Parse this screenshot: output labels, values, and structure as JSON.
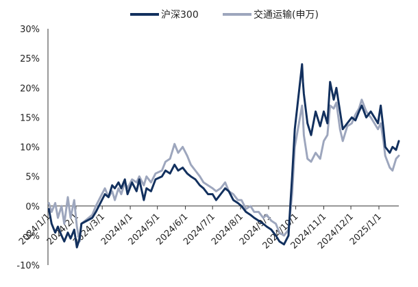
{
  "chart_data": {
    "type": "line",
    "title": "",
    "xlabel": "",
    "ylabel": "",
    "ylim": [
      -10,
      30
    ],
    "y_ticks": [
      "30%",
      "25%",
      "20%",
      "15%",
      "10%",
      "5%",
      "0%",
      "-5%",
      "-10%"
    ],
    "y_tick_values": [
      30,
      25,
      20,
      15,
      10,
      5,
      0,
      -5,
      -10
    ],
    "x_ticks": [
      "2024/1/1",
      "2024/2/1",
      "2024/3/1",
      "2024/4/1",
      "2024/5/1",
      "2024/6/1",
      "2024/7/1",
      "2024/8/1",
      "2024/9/1",
      "2024/10/1",
      "2024/11/1",
      "2024/12/1",
      "2025/1/1"
    ],
    "x_range": [
      "2024-01-01",
      "2025-01-23"
    ],
    "grid": false,
    "legend_position": "top-center",
    "series": [
      {
        "name": "沪深300",
        "color": "#12305e",
        "points": [
          [
            "2024-01-02",
            -0.5
          ],
          [
            "2024-01-05",
            -3.0
          ],
          [
            "2024-01-09",
            -4.5
          ],
          [
            "2024-01-12",
            -3.5
          ],
          [
            "2024-01-16",
            -5.0
          ],
          [
            "2024-01-19",
            -6.0
          ],
          [
            "2024-01-23",
            -4.5
          ],
          [
            "2024-01-26",
            -5.5
          ],
          [
            "2024-01-30",
            -4.0
          ],
          [
            "2024-02-02",
            -7.0
          ],
          [
            "2024-02-05",
            -5.5
          ],
          [
            "2024-02-07",
            -3.0
          ],
          [
            "2024-02-19",
            -2.0
          ],
          [
            "2024-02-23",
            -1.0
          ],
          [
            "2024-02-28",
            0.5
          ],
          [
            "2024-03-04",
            2.0
          ],
          [
            "2024-03-08",
            1.5
          ],
          [
            "2024-03-12",
            3.5
          ],
          [
            "2024-03-15",
            3.0
          ],
          [
            "2024-03-19",
            4.0
          ],
          [
            "2024-03-22",
            3.0
          ],
          [
            "2024-03-26",
            4.5
          ],
          [
            "2024-03-29",
            2.0
          ],
          [
            "2024-04-03",
            4.0
          ],
          [
            "2024-04-08",
            2.5
          ],
          [
            "2024-04-11",
            4.5
          ],
          [
            "2024-04-16",
            1.0
          ],
          [
            "2024-04-19",
            3.0
          ],
          [
            "2024-04-24",
            2.5
          ],
          [
            "2024-04-29",
            4.5
          ],
          [
            "2024-05-06",
            5.0
          ],
          [
            "2024-05-10",
            6.0
          ],
          [
            "2024-05-15",
            5.5
          ],
          [
            "2024-05-20",
            7.0
          ],
          [
            "2024-05-24",
            6.0
          ],
          [
            "2024-05-29",
            6.5
          ],
          [
            "2024-06-03",
            5.5
          ],
          [
            "2024-06-07",
            5.0
          ],
          [
            "2024-06-12",
            4.5
          ],
          [
            "2024-06-17",
            3.5
          ],
          [
            "2024-06-21",
            3.0
          ],
          [
            "2024-06-26",
            2.0
          ],
          [
            "2024-07-01",
            2.0
          ],
          [
            "2024-07-05",
            1.0
          ],
          [
            "2024-07-10",
            2.0
          ],
          [
            "2024-07-15",
            3.0
          ],
          [
            "2024-07-19",
            2.5
          ],
          [
            "2024-07-24",
            1.0
          ],
          [
            "2024-07-29",
            0.5
          ],
          [
            "2024-08-02",
            0.0
          ],
          [
            "2024-08-07",
            -1.0
          ],
          [
            "2024-08-12",
            -1.5
          ],
          [
            "2024-08-16",
            -2.0
          ],
          [
            "2024-08-21",
            -2.5
          ],
          [
            "2024-08-26",
            -3.0
          ],
          [
            "2024-08-30",
            -3.5
          ],
          [
            "2024-09-04",
            -4.0
          ],
          [
            "2024-09-09",
            -5.0
          ],
          [
            "2024-09-13",
            -6.0
          ],
          [
            "2024-09-18",
            -6.5
          ],
          [
            "2024-09-23",
            -5.0
          ],
          [
            "2024-09-25",
            0.0
          ],
          [
            "2024-09-27",
            5.0
          ],
          [
            "2024-09-30",
            13.0
          ],
          [
            "2024-10-08",
            24.0
          ],
          [
            "2024-10-09",
            21.0
          ],
          [
            "2024-10-10",
            19.0
          ],
          [
            "2024-10-14",
            14.0
          ],
          [
            "2024-10-18",
            12.0
          ],
          [
            "2024-10-23",
            16.0
          ],
          [
            "2024-10-28",
            13.5
          ],
          [
            "2024-11-01",
            16.0
          ],
          [
            "2024-11-05",
            14.0
          ],
          [
            "2024-11-08",
            21.0
          ],
          [
            "2024-11-12",
            18.0
          ],
          [
            "2024-11-15",
            20.0
          ],
          [
            "2024-11-19",
            16.0
          ],
          [
            "2024-11-22",
            13.0
          ],
          [
            "2024-11-27",
            14.0
          ],
          [
            "2024-12-02",
            15.0
          ],
          [
            "2024-12-06",
            14.5
          ],
          [
            "2024-12-10",
            16.0
          ],
          [
            "2024-12-13",
            17.0
          ],
          [
            "2024-12-18",
            15.0
          ],
          [
            "2024-12-23",
            16.0
          ],
          [
            "2024-12-27",
            15.0
          ],
          [
            "2024-12-31",
            14.0
          ],
          [
            "2025-01-03",
            17.0
          ],
          [
            "2025-01-06",
            13.0
          ],
          [
            "2025-01-08",
            10.0
          ],
          [
            "2025-01-13",
            9.0
          ],
          [
            "2025-01-16",
            10.0
          ],
          [
            "2025-01-20",
            9.5
          ],
          [
            "2025-01-23",
            11.0
          ]
        ]
      },
      {
        "name": "交通运输(申万)",
        "color": "#9da6bd",
        "points": [
          [
            "2024-01-02",
            0.5
          ],
          [
            "2024-01-05",
            -1.0
          ],
          [
            "2024-01-09",
            0.5
          ],
          [
            "2024-01-12",
            -2.0
          ],
          [
            "2024-01-16",
            0.0
          ],
          [
            "2024-01-19",
            -3.0
          ],
          [
            "2024-01-23",
            1.5
          ],
          [
            "2024-01-26",
            -2.0
          ],
          [
            "2024-01-30",
            1.0
          ],
          [
            "2024-02-02",
            -3.5
          ],
          [
            "2024-02-05",
            -6.0
          ],
          [
            "2024-02-07",
            -3.0
          ],
          [
            "2024-02-19",
            -1.5
          ],
          [
            "2024-02-23",
            0.0
          ],
          [
            "2024-02-28",
            1.5
          ],
          [
            "2024-03-04",
            3.0
          ],
          [
            "2024-03-08",
            1.5
          ],
          [
            "2024-03-12",
            2.5
          ],
          [
            "2024-03-15",
            1.0
          ],
          [
            "2024-03-19",
            3.0
          ],
          [
            "2024-03-22",
            2.0
          ],
          [
            "2024-03-26",
            4.0
          ],
          [
            "2024-03-29",
            3.0
          ],
          [
            "2024-04-03",
            4.5
          ],
          [
            "2024-04-08",
            4.0
          ],
          [
            "2024-04-11",
            5.0
          ],
          [
            "2024-04-16",
            3.5
          ],
          [
            "2024-04-19",
            5.0
          ],
          [
            "2024-04-24",
            4.0
          ],
          [
            "2024-04-29",
            5.5
          ],
          [
            "2024-05-06",
            6.0
          ],
          [
            "2024-05-10",
            7.5
          ],
          [
            "2024-05-15",
            8.0
          ],
          [
            "2024-05-20",
            10.5
          ],
          [
            "2024-05-24",
            9.0
          ],
          [
            "2024-05-29",
            10.0
          ],
          [
            "2024-06-03",
            8.5
          ],
          [
            "2024-06-07",
            7.0
          ],
          [
            "2024-06-12",
            6.0
          ],
          [
            "2024-06-17",
            5.0
          ],
          [
            "2024-06-21",
            4.0
          ],
          [
            "2024-06-26",
            3.5
          ],
          [
            "2024-07-01",
            3.0
          ],
          [
            "2024-07-05",
            2.5
          ],
          [
            "2024-07-10",
            3.0
          ],
          [
            "2024-07-15",
            4.0
          ],
          [
            "2024-07-19",
            2.5
          ],
          [
            "2024-07-24",
            2.0
          ],
          [
            "2024-07-29",
            1.0
          ],
          [
            "2024-08-02",
            1.0
          ],
          [
            "2024-08-07",
            -0.5
          ],
          [
            "2024-08-12",
            0.0
          ],
          [
            "2024-08-16",
            -1.0
          ],
          [
            "2024-08-21",
            -1.0
          ],
          [
            "2024-08-26",
            -2.0
          ],
          [
            "2024-08-30",
            -1.5
          ],
          [
            "2024-09-04",
            -2.5
          ],
          [
            "2024-09-09",
            -3.0
          ],
          [
            "2024-09-13",
            -4.5
          ],
          [
            "2024-09-18",
            -5.0
          ],
          [
            "2024-09-23",
            -4.0
          ],
          [
            "2024-09-25",
            -1.0
          ],
          [
            "2024-09-27",
            2.0
          ],
          [
            "2024-09-30",
            10.0
          ],
          [
            "2024-10-08",
            17.0
          ],
          [
            "2024-10-09",
            15.0
          ],
          [
            "2024-10-10",
            12.0
          ],
          [
            "2024-10-14",
            8.0
          ],
          [
            "2024-10-18",
            7.5
          ],
          [
            "2024-10-23",
            9.0
          ],
          [
            "2024-10-28",
            8.0
          ],
          [
            "2024-11-01",
            11.0
          ],
          [
            "2024-11-05",
            12.0
          ],
          [
            "2024-11-08",
            17.0
          ],
          [
            "2024-11-12",
            16.5
          ],
          [
            "2024-11-15",
            17.5
          ],
          [
            "2024-11-19",
            13.0
          ],
          [
            "2024-11-22",
            11.0
          ],
          [
            "2024-11-27",
            13.5
          ],
          [
            "2024-12-02",
            14.0
          ],
          [
            "2024-12-06",
            15.5
          ],
          [
            "2024-12-10",
            16.5
          ],
          [
            "2024-12-13",
            18.0
          ],
          [
            "2024-12-18",
            16.0
          ],
          [
            "2024-12-23",
            15.0
          ],
          [
            "2024-12-27",
            14.0
          ],
          [
            "2024-12-31",
            13.0
          ],
          [
            "2025-01-03",
            14.0
          ],
          [
            "2025-01-06",
            11.0
          ],
          [
            "2025-01-08",
            8.5
          ],
          [
            "2025-01-13",
            6.5
          ],
          [
            "2025-01-16",
            6.0
          ],
          [
            "2025-01-20",
            8.0
          ],
          [
            "2025-01-23",
            8.5
          ]
        ]
      }
    ]
  }
}
